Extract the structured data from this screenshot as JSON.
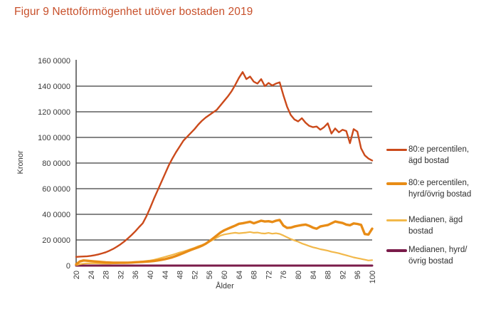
{
  "title": "Figur 9 Nettoförmögenhet utöver bostaden 2019",
  "title_color": "#c8502b",
  "chart_data": {
    "type": "line",
    "title": "Figur 9 Nettoförmögenhet utöver bostaden 2019",
    "xlabel": "Ålder",
    "ylabel": "Kronor",
    "xlim": [
      20,
      100
    ],
    "ylim": [
      0,
      1600000
    ],
    "grid": "horizontal",
    "grid_color": "#3f3f3f",
    "axis_text_color": "#3a3a3a",
    "legend_position": "right",
    "x_ticks": [
      20,
      24,
      28,
      32,
      36,
      40,
      44,
      48,
      52,
      56,
      60,
      64,
      68,
      72,
      76,
      80,
      84,
      88,
      92,
      96,
      100
    ],
    "y_ticks": [
      0,
      200000,
      400000,
      600000,
      800000,
      1000000,
      1200000,
      1400000,
      1600000
    ],
    "y_tick_labels": [
      "0",
      "20 0000",
      "40 0000",
      "60 0000",
      "80 0000",
      "100 0000",
      "120 0000",
      "140 0000",
      "160 0000"
    ],
    "x_range": {
      "start": 20,
      "end": 100,
      "step": 1
    },
    "series": [
      {
        "name": "80:e percentilen, ägd bostad",
        "color": "#cb4a1b",
        "stroke_width": 2.4,
        "values": [
          68000,
          70000,
          71000,
          73000,
          76000,
          81000,
          87000,
          95000,
          104000,
          116000,
          130000,
          147000,
          166000,
          188000,
          212000,
          239000,
          268000,
          300000,
          330000,
          385000,
          450000,
          520000,
          585000,
          650000,
          715000,
          780000,
          835000,
          885000,
          930000,
          975000,
          1005000,
          1035000,
          1065000,
          1100000,
          1130000,
          1155000,
          1175000,
          1195000,
          1215000,
          1250000,
          1285000,
          1320000,
          1360000,
          1410000,
          1465000,
          1510000,
          1455000,
          1475000,
          1435000,
          1420000,
          1455000,
          1400000,
          1425000,
          1405000,
          1420000,
          1430000,
          1330000,
          1240000,
          1175000,
          1140000,
          1125000,
          1150000,
          1115000,
          1090000,
          1080000,
          1085000,
          1060000,
          1080000,
          1110000,
          1030000,
          1070000,
          1040000,
          1060000,
          1050000,
          955000,
          1065000,
          1045000,
          915000,
          860000,
          835000,
          820000
        ]
      },
      {
        "name": "80:e percentilen, hyrd/övrig bostad",
        "color": "#e88c16",
        "stroke_width": 3.4,
        "values": [
          10000,
          32000,
          40000,
          38000,
          35000,
          32000,
          30000,
          27000,
          25000,
          24000,
          23000,
          22000,
          22000,
          22000,
          23000,
          24000,
          26000,
          27000,
          29000,
          31000,
          33000,
          36000,
          40000,
          45000,
          50000,
          57000,
          65000,
          75000,
          86000,
          98000,
          110000,
          122000,
          133000,
          143000,
          155000,
          170000,
          190000,
          212000,
          235000,
          258000,
          275000,
          288000,
          300000,
          312000,
          326000,
          330000,
          336000,
          342000,
          330000,
          340000,
          350000,
          344000,
          346000,
          340000,
          350000,
          356000,
          312000,
          294000,
          296000,
          305000,
          311000,
          316000,
          320000,
          310000,
          296000,
          288000,
          305000,
          311000,
          316000,
          330000,
          344000,
          338000,
          332000,
          320000,
          315000,
          329000,
          325000,
          318000,
          246000,
          242000,
          288000
        ]
      },
      {
        "name": "Medianen, ägd bostad",
        "color": "#f2b84a",
        "stroke_width": 2.2,
        "values": [
          4000,
          11000,
          15000,
          17000,
          18000,
          18000,
          17000,
          16000,
          16000,
          16000,
          17000,
          18000,
          20000,
          21000,
          23000,
          25000,
          27000,
          30000,
          33000,
          36000,
          40000,
          45000,
          52000,
          60000,
          68000,
          76000,
          84000,
          93000,
          102000,
          110000,
          119000,
          129000,
          139000,
          151000,
          160000,
          172000,
          186000,
          201000,
          218000,
          234000,
          243000,
          248000,
          252000,
          256000,
          252000,
          255000,
          258000,
          262000,
          256000,
          258000,
          252000,
          250000,
          255000,
          249000,
          252000,
          247000,
          235000,
          221000,
          207000,
          196000,
          186000,
          173000,
          163000,
          152000,
          143000,
          136000,
          128000,
          122000,
          116000,
          108000,
          102000,
          96000,
          88000,
          80000,
          72000,
          64000,
          58000,
          52000,
          46000,
          40000,
          43000
        ]
      },
      {
        "name": "Medianen, hyrd/övrig bostad",
        "color": "#7a1b4a",
        "stroke_width": 3,
        "values": [
          0,
          0,
          0,
          0,
          0,
          0,
          0,
          0,
          0,
          0,
          0,
          0,
          0,
          0,
          0,
          0,
          0,
          0,
          0,
          0,
          0,
          0,
          0,
          0,
          0,
          0,
          0,
          0,
          0,
          0,
          0,
          0,
          0,
          0,
          0,
          0,
          0,
          0,
          0,
          0,
          0,
          0,
          0,
          0,
          0,
          0,
          0,
          0,
          0,
          0,
          0,
          0,
          0,
          0,
          0,
          0,
          0,
          0,
          0,
          0,
          0,
          0,
          0,
          0,
          0,
          0,
          0,
          0,
          0,
          0,
          0,
          0,
          0,
          0,
          0,
          0,
          0,
          0,
          0,
          0,
          0
        ]
      }
    ]
  }
}
